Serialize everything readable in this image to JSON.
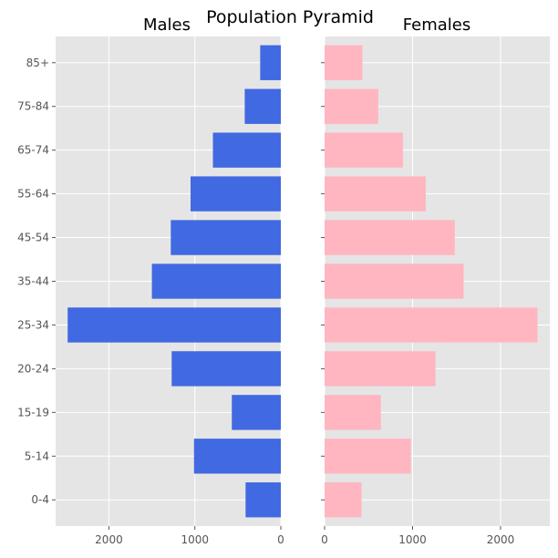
{
  "chart_data": {
    "type": "bar",
    "orientation": "horizontal",
    "title": "Population Pyramid",
    "categories": [
      "0-4",
      "5-14",
      "15-19",
      "20-24",
      "25-34",
      "35-44",
      "45-54",
      "55-64",
      "65-74",
      "75-84",
      "85+"
    ],
    "series": [
      {
        "name": "Males",
        "color": "#4169e1",
        "values": [
          410,
          1010,
          570,
          1270,
          2480,
          1500,
          1280,
          1050,
          790,
          420,
          240
        ]
      },
      {
        "name": "Females",
        "color": "#ffb6c1",
        "values": [
          420,
          980,
          640,
          1260,
          2420,
          1580,
          1480,
          1150,
          890,
          610,
          430
        ]
      }
    ],
    "males_axis": {
      "xlim": [
        2620,
        0
      ],
      "ticks": [
        2000,
        1000,
        0
      ]
    },
    "females_axis": {
      "xlim": [
        0,
        2560
      ],
      "ticks": [
        0,
        1000,
        2000
      ]
    },
    "grid": true,
    "background": "#e5e5e5",
    "grid_color": "#ffffff"
  }
}
